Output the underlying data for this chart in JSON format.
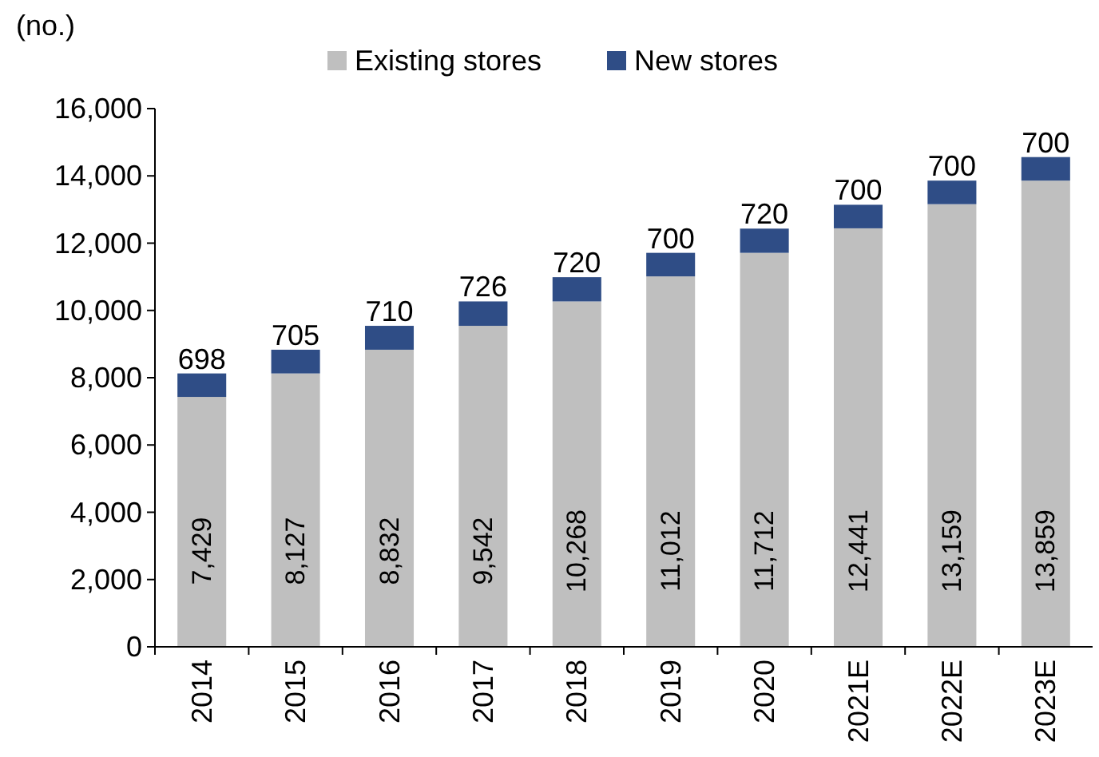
{
  "chart_data": {
    "type": "bar",
    "ylabel": "(no.)",
    "stacked": true,
    "legend": "top",
    "grid": false,
    "categories": [
      "2014",
      "2015",
      "2016",
      "2017",
      "2018",
      "2019",
      "2020",
      "2021E",
      "2022E",
      "2023E"
    ],
    "series": [
      {
        "name": "Existing stores",
        "color": "#bfbfbf",
        "values": [
          7429,
          8127,
          8832,
          9542,
          10268,
          11012,
          11712,
          12441,
          13159,
          13859
        ],
        "value_labels": [
          "7,429",
          "8,127",
          "8,832",
          "9,542",
          "10,268",
          "11,012",
          "11,712",
          "12,441",
          "13,159",
          "13,859"
        ]
      },
      {
        "name": "New stores",
        "color": "#2f4d86",
        "values": [
          698,
          705,
          710,
          726,
          720,
          700,
          720,
          700,
          700,
          700
        ],
        "value_labels": [
          "698",
          "705",
          "710",
          "726",
          "720",
          "700",
          "720",
          "700",
          "700",
          "700"
        ]
      }
    ],
    "ylim": [
      0,
      16000
    ],
    "yticks": [
      {
        "value": 0,
        "label": "0"
      },
      {
        "value": 2000,
        "label": "2,000"
      },
      {
        "value": 4000,
        "label": "4,000"
      },
      {
        "value": 6000,
        "label": "6,000"
      },
      {
        "value": 8000,
        "label": "8,000"
      },
      {
        "value": 10000,
        "label": "10,000"
      },
      {
        "value": 12000,
        "label": "12,000"
      },
      {
        "value": 14000,
        "label": "14,000"
      },
      {
        "value": 16000,
        "label": "16,000"
      }
    ]
  }
}
